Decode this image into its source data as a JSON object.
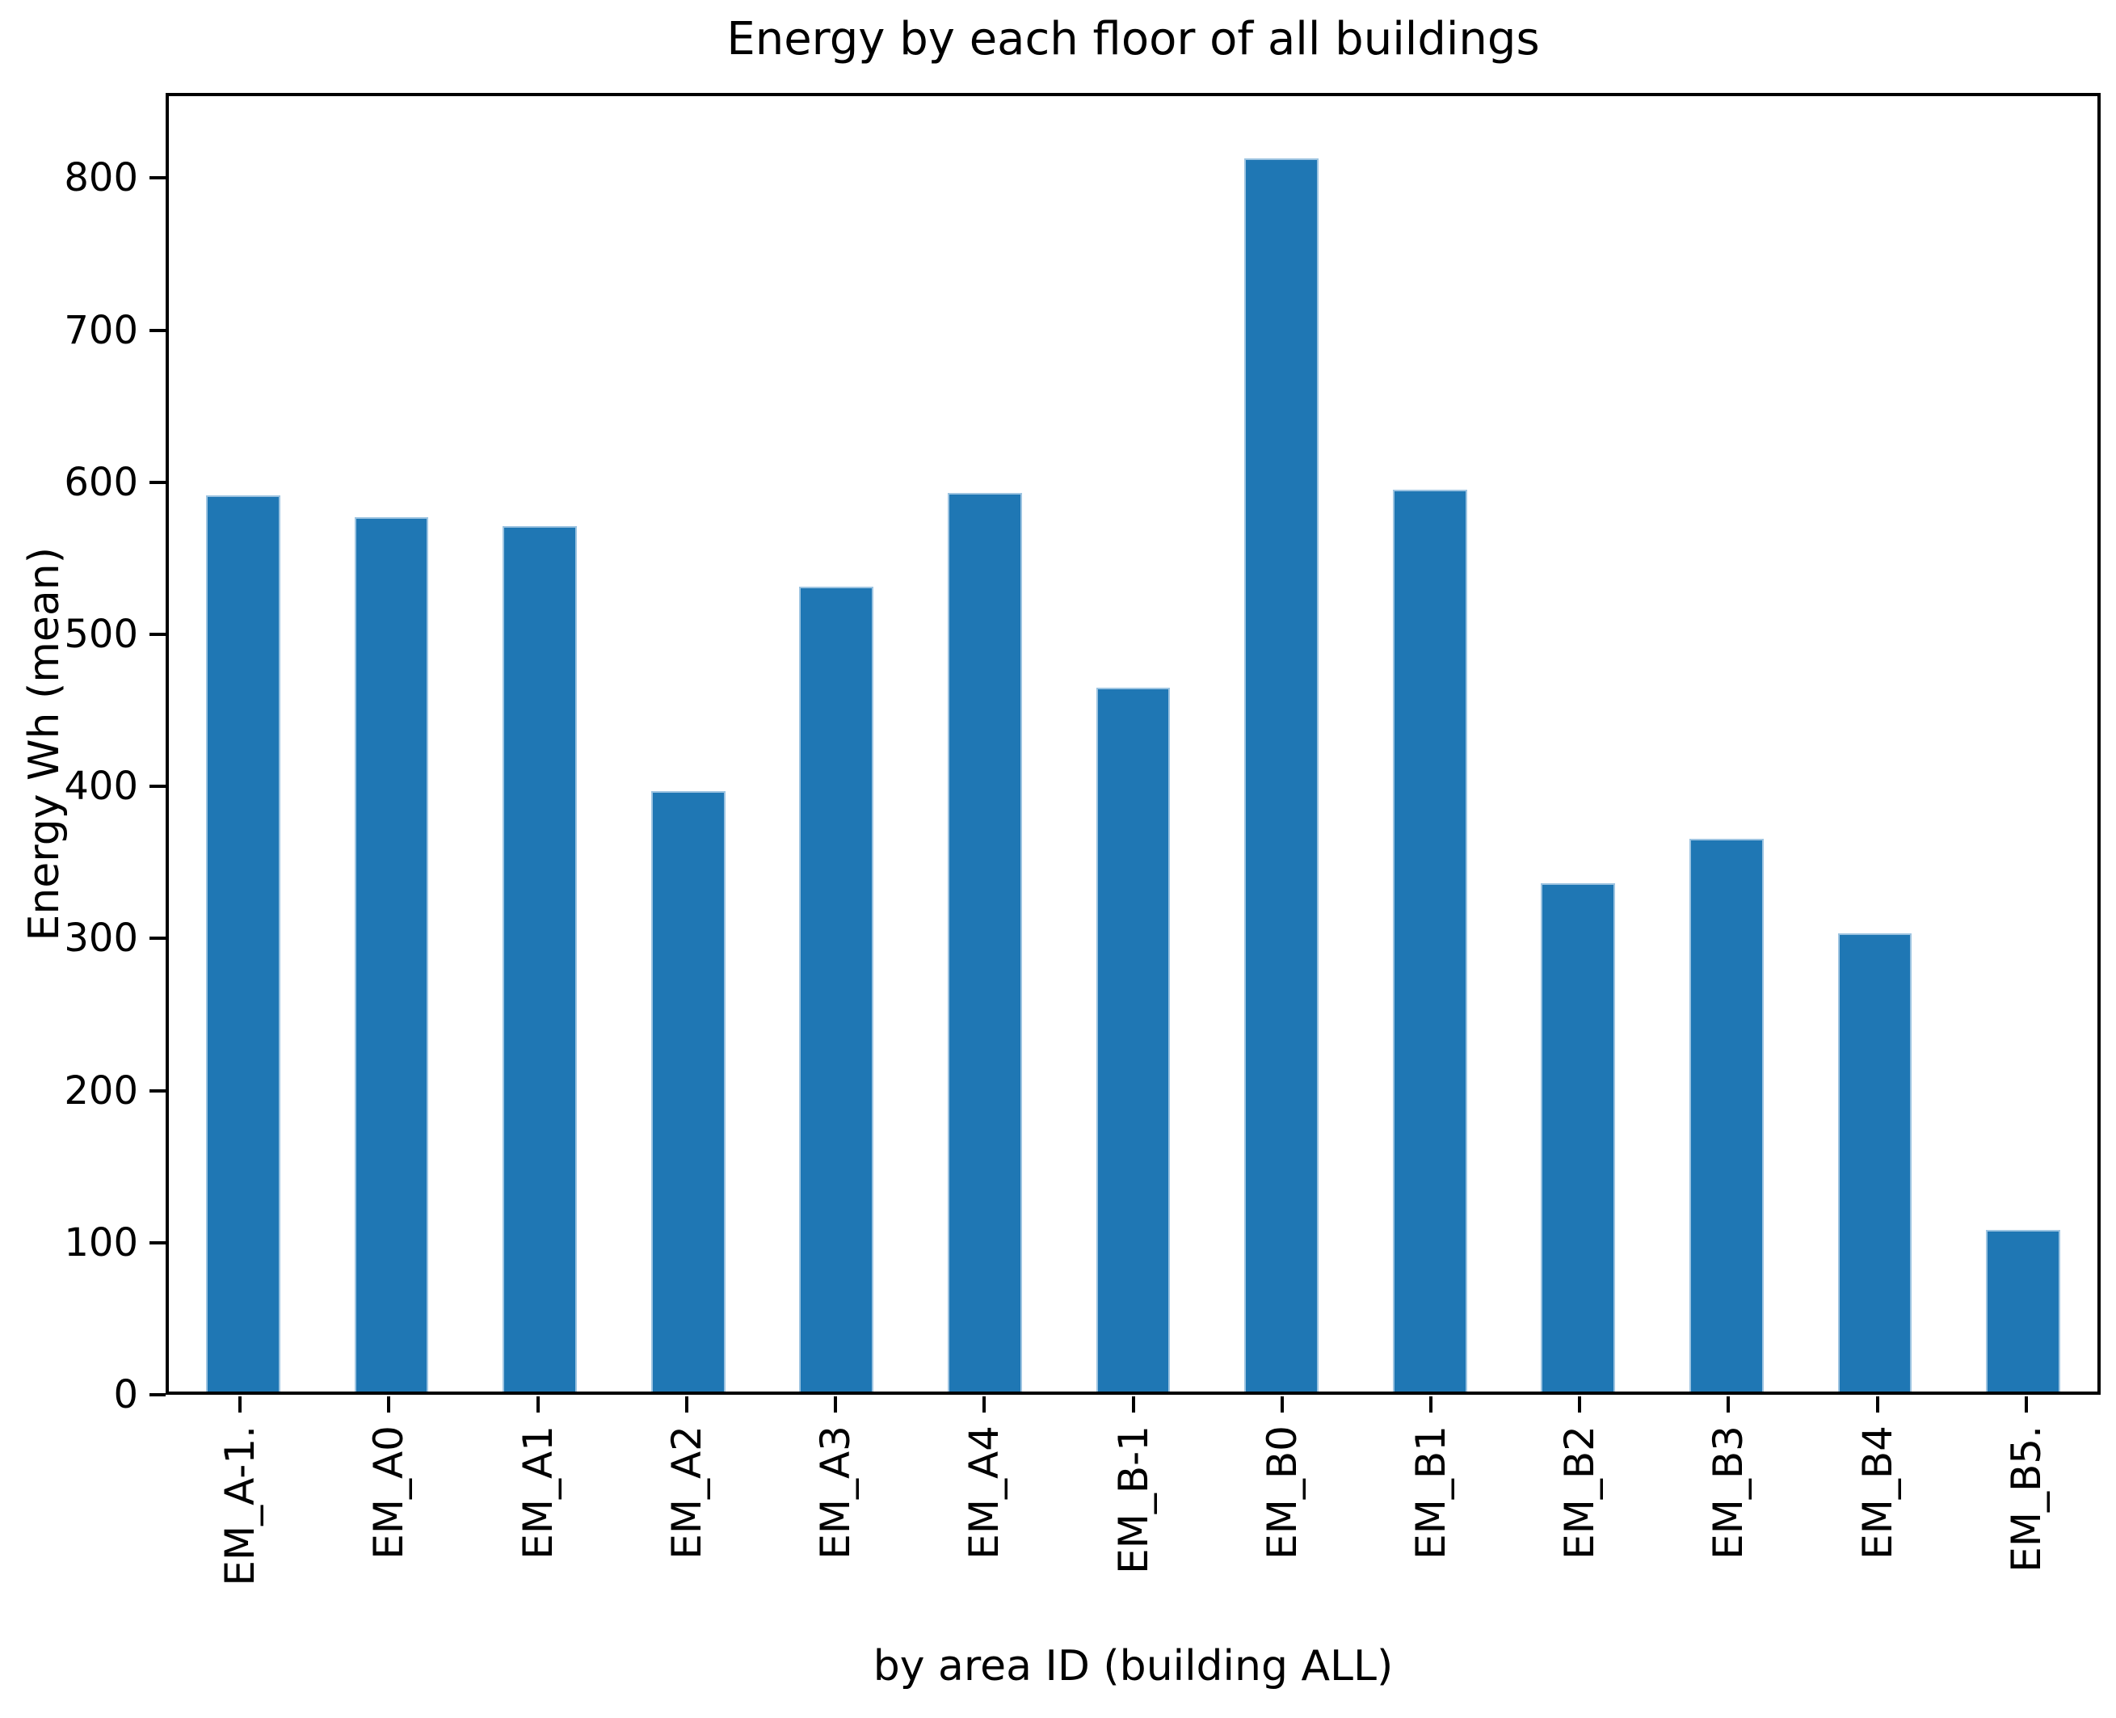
{
  "title": "Energy by each floor of all buildings",
  "chart_data": {
    "type": "bar",
    "title": "Energy by each floor of all buildings",
    "xlabel": "by area ID (building ALL)",
    "ylabel": "Energy Wh (mean)",
    "categories": [
      "EM_A-1.",
      "EM_A0",
      "EM_A1",
      "EM_A2",
      "EM_A3",
      "EM_A4",
      "EM_B-1",
      "EM_B0",
      "EM_B1",
      "EM_B2",
      "EM_B3",
      "EM_B4",
      "EM_B5."
    ],
    "values": [
      592,
      578,
      572,
      397,
      532,
      594,
      465,
      815,
      596,
      336,
      365,
      303,
      107
    ],
    "yticks": [
      0,
      100,
      200,
      300,
      400,
      500,
      600,
      700,
      800
    ],
    "ylim": [
      0,
      856
    ],
    "grid": false,
    "legend": false,
    "bar_width_fraction": 0.5,
    "tick_label_rotation_degrees": 90
  },
  "colors": {
    "bar_fill": "#1f77b4",
    "bar_edge": "#9dc4e1",
    "axis": "#000000",
    "background": "#ffffff",
    "text": "#000000"
  }
}
